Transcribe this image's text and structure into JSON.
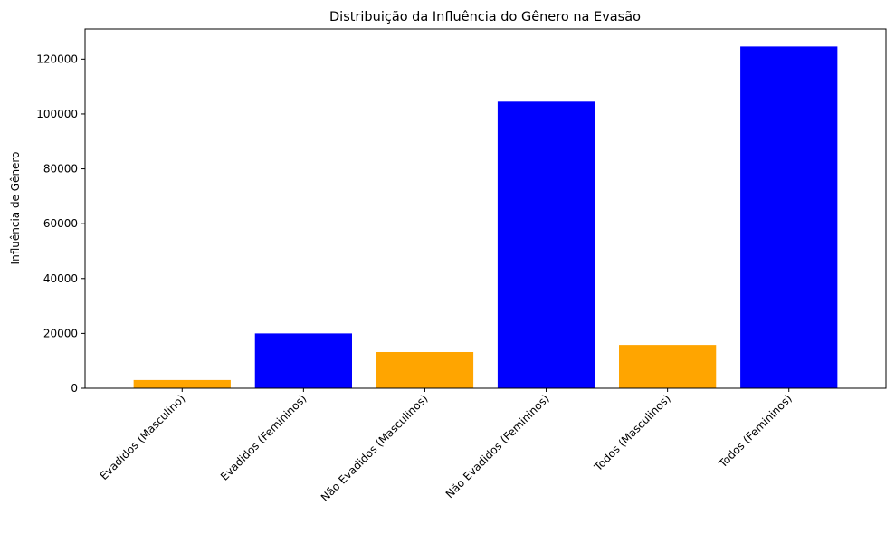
{
  "chart_data": {
    "type": "bar",
    "title": "Distribuição da Influência do Gênero na Evasão",
    "xlabel": "",
    "ylabel": "Influência de Gênero",
    "categories": [
      "Evadidos (Masculino)",
      "Evadidos (Femininos)",
      "Não Evadidos (Masculinos)",
      "Não Evadidos (Femininos)",
      "Todos (Masculinos)",
      "Todos (Femininos)"
    ],
    "values": [
      3000,
      20000,
      13200,
      104500,
      15800,
      124600
    ],
    "colors": [
      "#FFA500",
      "#0000FF",
      "#FFA500",
      "#0000FF",
      "#FFA500",
      "#0000FF"
    ],
    "ylim": [
      0,
      131000
    ],
    "yticks": [
      0,
      20000,
      40000,
      60000,
      80000,
      100000,
      120000
    ],
    "ytick_labels": [
      "0",
      "20000",
      "40000",
      "60000",
      "80000",
      "100000",
      "120000"
    ],
    "grid": false,
    "legend": "none"
  }
}
